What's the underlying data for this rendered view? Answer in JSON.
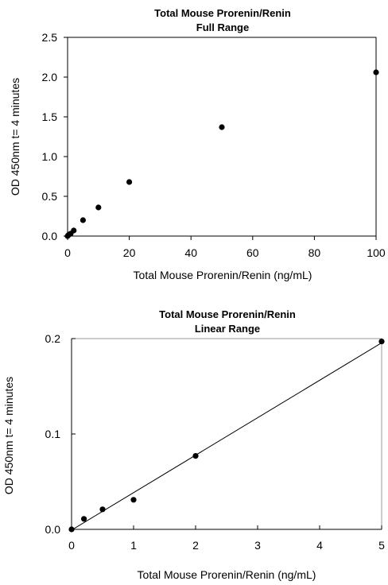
{
  "chart_data": [
    {
      "type": "scatter",
      "title": "Total Mouse Prorenin/Renin",
      "subtitle": "Full Range",
      "xlabel": "Total Mouse Prorenin/Renin (ng/mL)",
      "ylabel": "OD 450nm t= 4 minutes",
      "xlim": [
        0,
        100
      ],
      "ylim": [
        0,
        2.5
      ],
      "x_ticks": [
        "0",
        "20",
        "40",
        "60",
        "80",
        "100"
      ],
      "y_ticks": [
        "0.0",
        "0.5",
        "1.0",
        "1.5",
        "2.0",
        "2.5"
      ],
      "grid": false,
      "trendline": false,
      "points": [
        {
          "x": 0,
          "y": 0.0
        },
        {
          "x": 0.2,
          "y": 0.01
        },
        {
          "x": 0.5,
          "y": 0.02
        },
        {
          "x": 1,
          "y": 0.03
        },
        {
          "x": 2,
          "y": 0.07
        },
        {
          "x": 5,
          "y": 0.2
        },
        {
          "x": 10,
          "y": 0.36
        },
        {
          "x": 20,
          "y": 0.68
        },
        {
          "x": 50,
          "y": 1.37
        },
        {
          "x": 100,
          "y": 2.06
        }
      ]
    },
    {
      "type": "scatter",
      "title": "Total Mouse Prorenin/Renin",
      "subtitle": "Linear Range",
      "xlabel": "Total Mouse Prorenin/Renin (ng/mL)",
      "ylabel": "OD 450nm t= 4 minutes",
      "xlim": [
        0,
        5
      ],
      "ylim": [
        0,
        0.2
      ],
      "x_ticks": [
        "0",
        "1",
        "2",
        "3",
        "4",
        "5"
      ],
      "y_ticks": [
        "0.0",
        "0.1",
        "0.2"
      ],
      "grid": false,
      "trendline": true,
      "points": [
        {
          "x": 0,
          "y": 0.0
        },
        {
          "x": 0.2,
          "y": 0.011
        },
        {
          "x": 0.5,
          "y": 0.021
        },
        {
          "x": 1,
          "y": 0.031
        },
        {
          "x": 2,
          "y": 0.077
        },
        {
          "x": 5,
          "y": 0.197
        }
      ]
    }
  ]
}
